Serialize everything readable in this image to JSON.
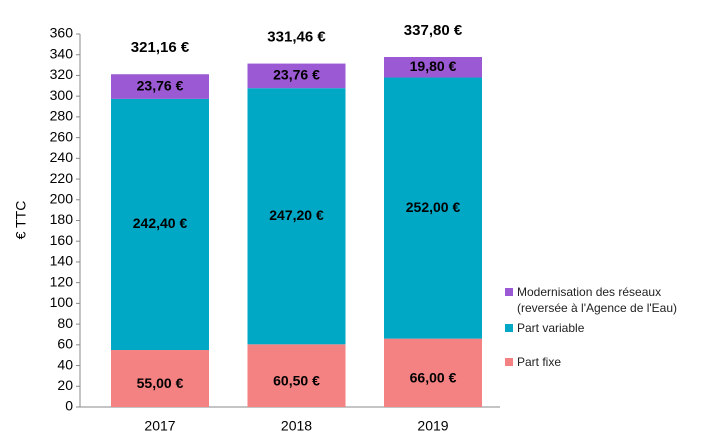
{
  "chart_data": {
    "type": "stacked_bar",
    "y_label": "€ TTC",
    "categories": [
      "2017",
      "2018",
      "2019"
    ],
    "series": [
      {
        "name": "Part fixe",
        "color": "#f48282",
        "values": [
          55.0,
          60.5,
          66.0
        ],
        "value_labels": [
          "55,00 €",
          "60,50 €",
          "66,00 €"
        ]
      },
      {
        "name": "Part variable",
        "color": "#00a8c6",
        "values": [
          242.4,
          247.2,
          252.0
        ],
        "value_labels": [
          "242,40 €",
          "247,20 €",
          "252,00 €"
        ]
      },
      {
        "name": "Modernisation des réseaux (reversée à l'Agence de l'Eau)",
        "color": "#9b59d3",
        "values": [
          23.76,
          23.76,
          19.8
        ],
        "value_labels": [
          "23,76 €",
          "23,76 €",
          "19,80 €"
        ]
      }
    ],
    "totals": [
      321.16,
      331.46,
      337.8
    ],
    "total_labels": [
      "321,16 €",
      "331,46 €",
      "337,80 €"
    ],
    "ylim": [
      0,
      360
    ],
    "yticks": [
      0,
      20,
      40,
      60,
      80,
      100,
      120,
      140,
      160,
      180,
      200,
      220,
      240,
      260,
      280,
      300,
      320,
      340,
      360
    ],
    "grid": false,
    "legend": "right"
  }
}
